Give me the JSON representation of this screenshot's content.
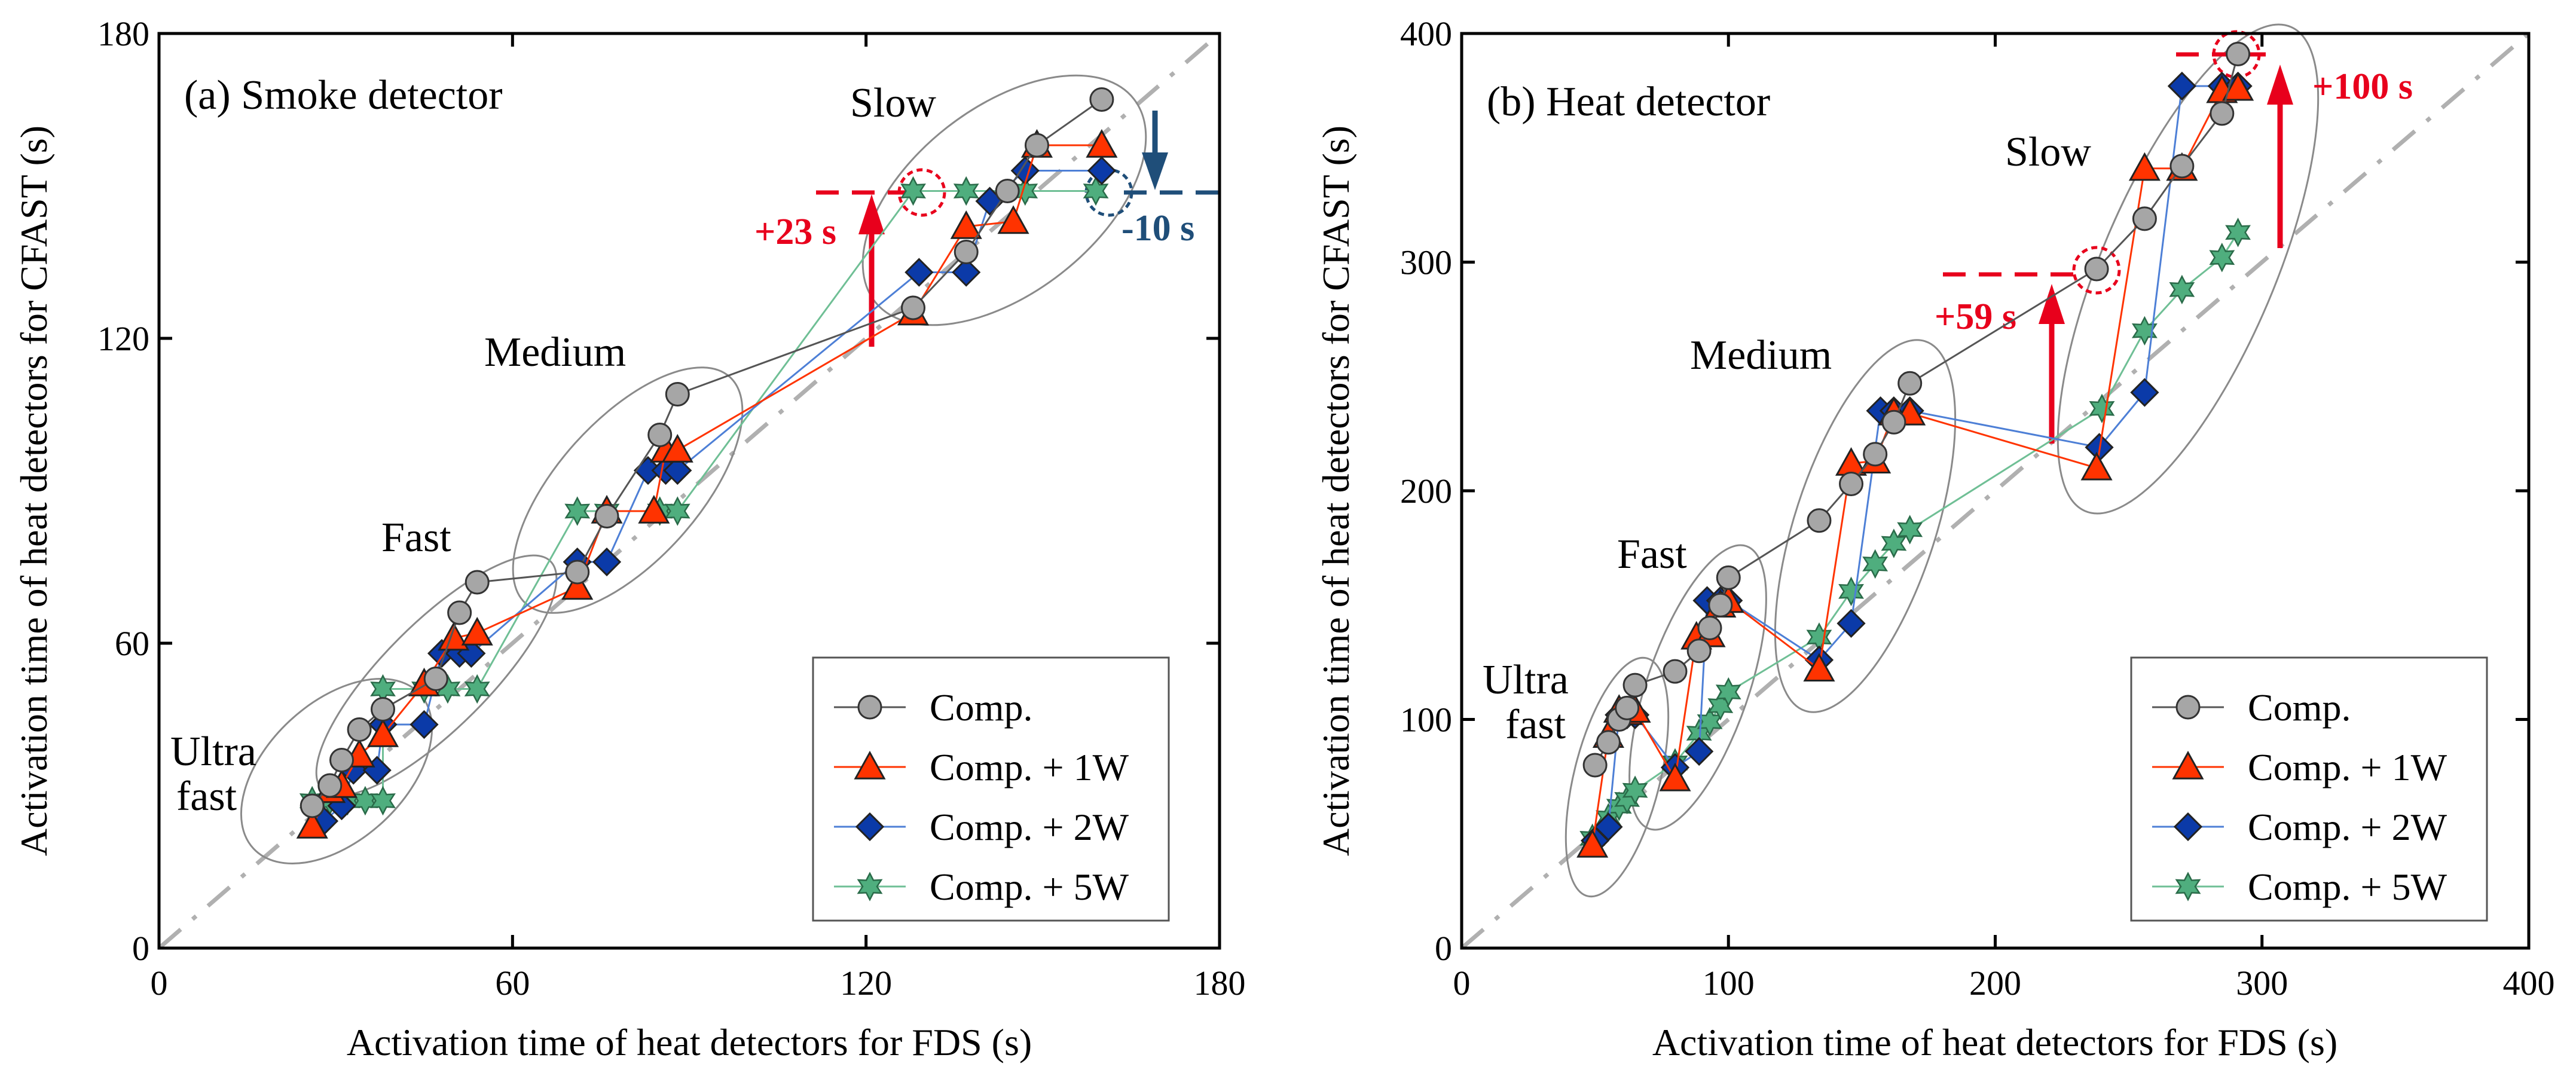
{
  "colors": {
    "comp": "#a6a6a6",
    "comp_1w": "#ff3300",
    "comp_2w": "#0b3aa8",
    "comp_5w": "#4fae7e",
    "increase": "#e8001c",
    "decrease": "#1f4e79",
    "diagonal": "#b0b0b0"
  },
  "legend": [
    "Comp.",
    "Comp. + 1W",
    "Comp. + 2W",
    "Comp. + 5W"
  ],
  "chart_data": [
    {
      "type": "scatter",
      "title": "(a) Smoke detector",
      "xlabel": "Activation time of heat detectors for FDS (s)",
      "ylabel": "Activation time of heat detectors for CFAST (s)",
      "xlim": [
        0,
        180
      ],
      "ylim": [
        0,
        180
      ],
      "xticks": [
        0,
        60,
        120,
        180
      ],
      "yticks": [
        0,
        60,
        120,
        180
      ],
      "groups": [
        {
          "label": "Ultra\nfast"
        },
        {
          "label": "Fast"
        },
        {
          "label": "Medium"
        },
        {
          "label": "Slow"
        }
      ],
      "series": [
        {
          "name": "Comp.",
          "points": [
            [
              26,
              28
            ],
            [
              29,
              32
            ],
            [
              31,
              37
            ],
            [
              34,
              43
            ],
            [
              38,
              47
            ],
            [
              47,
              53
            ],
            [
              51,
              66
            ],
            [
              54,
              72
            ],
            [
              71,
              74
            ],
            [
              76,
              85
            ],
            [
              85,
              101
            ],
            [
              88,
              109
            ],
            [
              128,
              126
            ],
            [
              137,
              137
            ],
            [
              144,
              149
            ],
            [
              149,
              158
            ],
            [
              160,
              167
            ]
          ]
        },
        {
          "name": "Comp. + 1W",
          "points": [
            [
              26,
              24
            ],
            [
              29,
              31
            ],
            [
              31,
              32
            ],
            [
              34,
              38
            ],
            [
              38,
              42
            ],
            [
              45,
              52
            ],
            [
              50,
              61
            ],
            [
              54,
              62
            ],
            [
              71,
              71
            ],
            [
              76,
              86
            ],
            [
              84,
              86
            ],
            [
              86,
              98
            ],
            [
              88,
              98
            ],
            [
              128,
              125
            ],
            [
              137,
              142
            ],
            [
              145,
              143
            ],
            [
              149,
              158
            ],
            [
              160,
              158
            ]
          ]
        },
        {
          "name": "Comp. + 2W",
          "points": [
            [
              28,
              25
            ],
            [
              31,
              28
            ],
            [
              33,
              35
            ],
            [
              37,
              35
            ],
            [
              38,
              44
            ],
            [
              45,
              44
            ],
            [
              48,
              58
            ],
            [
              51,
              58
            ],
            [
              53,
              58
            ],
            [
              71,
              76
            ],
            [
              76,
              76
            ],
            [
              83,
              94
            ],
            [
              86,
              94
            ],
            [
              88,
              94
            ],
            [
              129,
              133
            ],
            [
              137,
              133
            ],
            [
              141,
              147
            ],
            [
              147,
              153
            ],
            [
              160,
              153
            ]
          ]
        },
        {
          "name": "Comp. + 5W",
          "points": [
            [
              26,
              29
            ],
            [
              29,
              29
            ],
            [
              32,
              29
            ],
            [
              35,
              29
            ],
            [
              38,
              29
            ],
            [
              38,
              51
            ],
            [
              45,
              51
            ],
            [
              49,
              51
            ],
            [
              54,
              51
            ],
            [
              71,
              86
            ],
            [
              76,
              86
            ],
            [
              85,
              86
            ],
            [
              88,
              86
            ],
            [
              128,
              149
            ],
            [
              137,
              149
            ],
            [
              147,
              149
            ],
            [
              159,
              149
            ]
          ]
        }
      ],
      "annotations": {
        "increase": "+23 s",
        "decrease": "-10 s"
      }
    },
    {
      "type": "scatter",
      "title": "(b) Heat detector",
      "xlabel": "Activation time of heat detectors for FDS (s)",
      "ylabel": "Activation time of heat detectors for CFAST (s)",
      "xlim": [
        0,
        400
      ],
      "ylim": [
        0,
        400
      ],
      "xticks": [
        0,
        100,
        200,
        300,
        400
      ],
      "yticks": [
        0,
        100,
        200,
        300,
        400
      ],
      "groups": [
        {
          "label": "Ultra\nfast"
        },
        {
          "label": "Fast"
        },
        {
          "label": "Medium"
        },
        {
          "label": "Slow"
        }
      ],
      "series": [
        {
          "name": "Comp.",
          "points": [
            [
              50,
              80
            ],
            [
              55,
              90
            ],
            [
              59,
              100
            ],
            [
              62,
              105
            ],
            [
              65,
              115
            ],
            [
              80,
              121
            ],
            [
              89,
              130
            ],
            [
              93,
              140
            ],
            [
              97,
              150
            ],
            [
              100,
              162
            ],
            [
              134,
              187
            ],
            [
              146,
              203
            ],
            [
              155,
              216
            ],
            [
              162,
              230
            ],
            [
              168,
              247
            ],
            [
              238,
              297
            ],
            [
              256,
              319
            ],
            [
              270,
              342
            ],
            [
              285,
              365
            ],
            [
              291,
              391
            ]
          ]
        },
        {
          "name": "Comp. + 1W",
          "points": [
            [
              49,
              45
            ],
            [
              55,
              93
            ],
            [
              59,
              104
            ],
            [
              62,
              103
            ],
            [
              65,
              104
            ],
            [
              80,
              74
            ],
            [
              88,
              136
            ],
            [
              93,
              137
            ],
            [
              97,
              150
            ],
            [
              100,
              152
            ],
            [
              134,
              122
            ],
            [
              146,
              212
            ],
            [
              155,
              213
            ],
            [
              162,
              234
            ],
            [
              168,
              234
            ],
            [
              238,
              210
            ],
            [
              256,
              341
            ],
            [
              270,
              341
            ],
            [
              285,
              375
            ],
            [
              291,
              376
            ]
          ]
        },
        {
          "name": "Comp. + 2W",
          "points": [
            [
              50,
              47
            ],
            [
              55,
              53
            ],
            [
              59,
              102
            ],
            [
              62,
              102
            ],
            [
              65,
              102
            ],
            [
              80,
              79
            ],
            [
              89,
              86
            ],
            [
              92,
              152
            ],
            [
              97,
              152
            ],
            [
              100,
              152
            ],
            [
              134,
              126
            ],
            [
              146,
              142
            ],
            [
              157,
              235
            ],
            [
              162,
              235
            ],
            [
              168,
              235
            ],
            [
              239,
              219
            ],
            [
              256,
              243
            ],
            [
              270,
              377
            ],
            [
              285,
              377
            ],
            [
              291,
              377
            ]
          ]
        },
        {
          "name": "Comp. + 5W",
          "points": [
            [
              49,
              48
            ],
            [
              55,
              57
            ],
            [
              59,
              62
            ],
            [
              62,
              65
            ],
            [
              65,
              69
            ],
            [
              80,
              81
            ],
            [
              89,
              94
            ],
            [
              93,
              99
            ],
            [
              97,
              106
            ],
            [
              100,
              112
            ],
            [
              134,
              136
            ],
            [
              146,
              156
            ],
            [
              155,
              168
            ],
            [
              162,
              177
            ],
            [
              168,
              183
            ],
            [
              240,
              236
            ],
            [
              256,
              270
            ],
            [
              270,
              288
            ],
            [
              285,
              302
            ],
            [
              291,
              313
            ]
          ]
        }
      ],
      "annotations": {
        "increase_1": "+59 s",
        "increase_2": "+100 s"
      }
    }
  ]
}
